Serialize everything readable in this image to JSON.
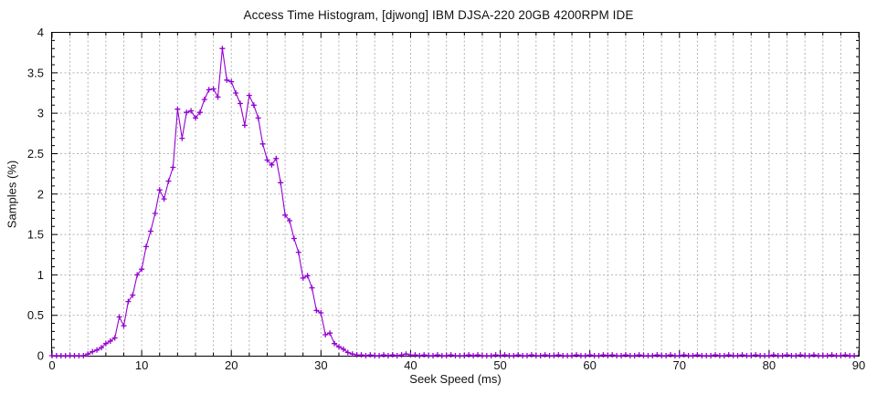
{
  "chart_data": {
    "type": "line",
    "title": "Access Time Histogram, [djwong] IBM DJSA-220 20GB 4200RPM IDE",
    "xlabel": "Seek Speed (ms)",
    "ylabel": "Samples (%)",
    "xlim": [
      0,
      90
    ],
    "ylim": [
      0,
      4
    ],
    "x_major_ticks": [
      0,
      10,
      20,
      30,
      40,
      50,
      60,
      70,
      80,
      90
    ],
    "x_minor_step": 2,
    "y_major_ticks": [
      0,
      0.5,
      1,
      1.5,
      2,
      2.5,
      3,
      3.5,
      4
    ],
    "y_minor_step": 0.1,
    "grid": true,
    "legend_position": "none",
    "marker": "plus",
    "series": [
      {
        "name": "samples",
        "x_start": 0,
        "x_step": 0.5,
        "values": [
          0,
          0,
          0,
          0,
          0,
          0,
          0,
          0,
          0.02,
          0.05,
          0.07,
          0.1,
          0.15,
          0.18,
          0.22,
          0.48,
          0.37,
          0.67,
          0.75,
          1.0,
          1.07,
          1.35,
          1.54,
          1.76,
          2.05,
          1.94,
          2.16,
          2.33,
          3.05,
          2.69,
          3.01,
          3.03,
          2.94,
          3.01,
          3.17,
          3.29,
          3.3,
          3.2,
          3.8,
          3.41,
          3.39,
          3.25,
          3.12,
          2.85,
          3.22,
          3.1,
          2.94,
          2.62,
          2.42,
          2.36,
          2.44,
          2.14,
          1.74,
          1.67,
          1.45,
          1.28,
          0.96,
          0.99,
          0.84,
          0.56,
          0.53,
          0.26,
          0.28,
          0.15,
          0.11,
          0.08,
          0.04,
          0.02,
          0.01,
          0.01,
          0,
          0.01,
          0,
          0,
          0.01,
          0,
          0.01,
          0,
          0.01,
          0.02,
          0.01,
          0.01,
          0,
          0.01,
          0,
          0,
          0.01,
          0,
          0,
          0.01,
          0,
          0,
          0,
          0.01,
          0,
          0.01,
          0,
          0,
          0,
          0.01,
          0,
          0.01,
          0,
          0,
          0.01,
          0,
          0,
          0.01,
          0,
          0,
          0.01,
          0,
          0,
          0.01,
          0,
          0,
          0,
          0.01,
          0,
          0,
          0.01,
          0,
          0,
          0.01,
          0,
          0.01,
          0,
          0,
          0.01,
          0,
          0,
          0.01,
          0,
          0,
          0,
          0.01,
          0,
          0,
          0.01,
          0,
          0,
          0.01,
          0,
          0,
          0.01,
          0,
          0,
          0,
          0.01,
          0,
          0,
          0.01,
          0,
          0,
          0.01,
          0,
          0,
          0.01,
          0,
          0,
          0,
          0.01,
          0,
          0,
          0.01,
          0,
          0,
          0.01,
          0,
          0,
          0.01,
          0,
          0,
          0,
          0.01,
          0,
          0,
          0.01,
          0,
          0
        ]
      }
    ]
  },
  "colors": {
    "line": "#9400d3",
    "grid": "#b3b3b3",
    "axis": "#000000",
    "background": "#ffffff",
    "text": "#111111"
  }
}
